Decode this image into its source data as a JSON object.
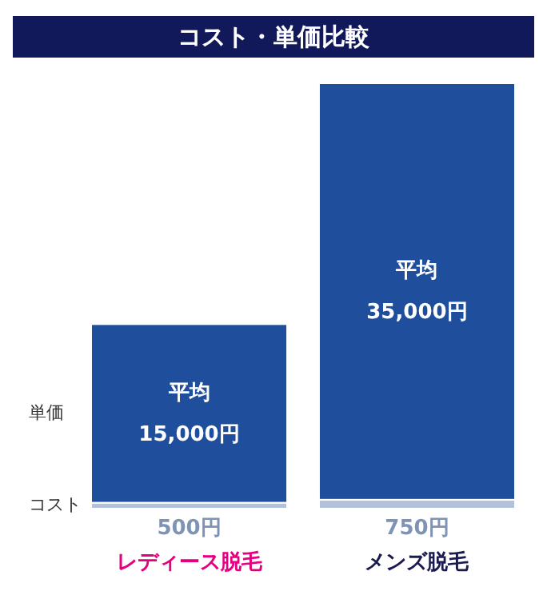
{
  "chart_data": {
    "type": "bar",
    "title": "コスト・単価比較",
    "stacked": true,
    "categories": [
      "レディース脱毛",
      "メンズ脱毛"
    ],
    "series": [
      {
        "name": "コスト",
        "color": "#b4c2d9",
        "values": [
          500,
          750
        ],
        "value_labels": [
          "500円",
          "750円"
        ]
      },
      {
        "name": "単価",
        "color": "#1f4e9c",
        "values": [
          15000,
          35000
        ],
        "value_labels": [
          "平均\n15,000円",
          "平均\n35,000円"
        ]
      }
    ],
    "legend": "left",
    "grid": false
  }
}
